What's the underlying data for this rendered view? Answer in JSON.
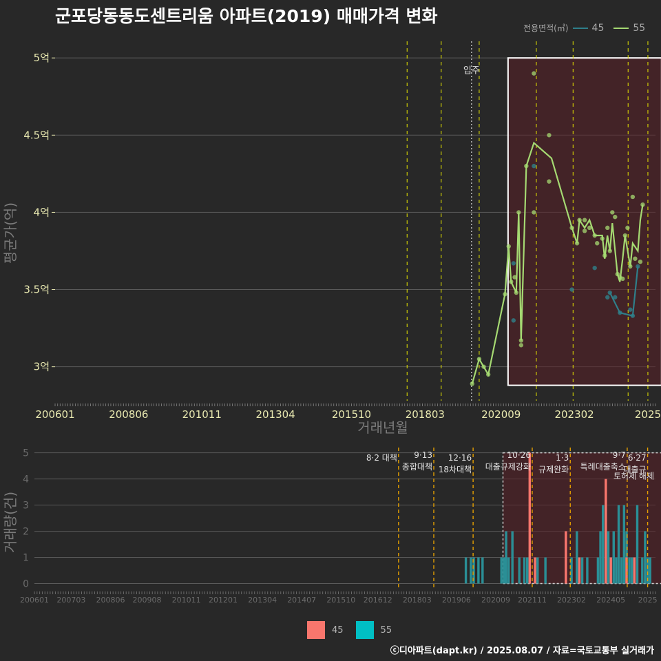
{
  "title": "군포당동동도센트리움 아파트(2019) 매매가격 변화",
  "legend_top": {
    "label": "전용면적(㎡)",
    "items": [
      {
        "name": "45",
        "color": "#2f7f8a"
      },
      {
        "name": "55",
        "color": "#a5d972"
      }
    ]
  },
  "legend_bottom": {
    "items": [
      {
        "name": "45",
        "color": "#f8766d"
      },
      {
        "name": "55",
        "color": "#00bfc4"
      }
    ]
  },
  "footer": "ⓒ디아파트(dapt.kr) / 2025.08.07 / 자료=국토교통부 실거래가",
  "chart_data": [
    {
      "type": "line",
      "title": "군포당동동도센트리움 아파트(2019) 매매가격 변화",
      "xlabel": "거래년월",
      "ylabel": "평균가(억)",
      "xlim": [
        2006.0,
        2025.75
      ],
      "ylim": [
        2.78,
        5.13
      ],
      "x_tick_labels": [
        "200601",
        "200806",
        "201011",
        "201304",
        "201510",
        "201803",
        "202009",
        "202302",
        "2025"
      ],
      "x_tick_values": [
        2006.0,
        2008.42,
        2010.83,
        2013.25,
        2015.75,
        2018.17,
        2020.67,
        2023.08,
        2025.5
      ],
      "y_tick_labels": [
        "3억",
        "3.5억",
        "4억",
        "4.5억",
        "5억"
      ],
      "y_tick_values": [
        3.0,
        3.5,
        4.0,
        4.5,
        5.0
      ],
      "event_lines": [
        2017.58,
        2018.7,
        2019.95,
        2021.83,
        2023.04,
        2024.85,
        2025.5
      ],
      "move_in": {
        "x": 2019.7,
        "label": "입주"
      },
      "highlight_range": [
        2020.9,
        2025.95
      ],
      "series": [
        {
          "name": "55",
          "points": [
            [
              2019.72,
              2.89
            ],
            [
              2019.95,
              3.05
            ],
            [
              2020.1,
              3.0
            ],
            [
              2020.25,
              2.95
            ],
            [
              2020.8,
              3.47
            ],
            [
              2020.92,
              3.78
            ],
            [
              2021.0,
              3.55
            ],
            [
              2021.17,
              3.48
            ],
            [
              2021.25,
              4.0
            ],
            [
              2021.33,
              3.17
            ],
            [
              2021.5,
              4.3
            ],
            [
              2021.75,
              4.45
            ],
            [
              2022.33,
              4.35
            ],
            [
              2023.0,
              3.9
            ],
            [
              2023.17,
              3.8
            ],
            [
              2023.25,
              3.95
            ],
            [
              2023.42,
              3.9
            ],
            [
              2023.58,
              3.95
            ],
            [
              2023.75,
              3.85
            ],
            [
              2024.0,
              3.85
            ],
            [
              2024.08,
              3.7
            ],
            [
              2024.17,
              3.85
            ],
            [
              2024.25,
              3.75
            ],
            [
              2024.33,
              3.93
            ],
            [
              2024.5,
              3.6
            ],
            [
              2024.58,
              3.55
            ],
            [
              2024.67,
              3.7
            ],
            [
              2024.75,
              3.85
            ],
            [
              2024.92,
              3.65
            ],
            [
              2025.0,
              3.8
            ],
            [
              2025.17,
              3.75
            ],
            [
              2025.25,
              3.95
            ],
            [
              2025.33,
              4.05
            ]
          ]
        },
        {
          "name": "45",
          "points": [
            [
              2024.25,
              3.48
            ],
            [
              2024.58,
              3.35
            ],
            [
              2025.0,
              3.33
            ],
            [
              2025.17,
              3.65
            ]
          ]
        }
      ],
      "scatter_55": [
        [
          2019.72,
          2.89
        ],
        [
          2019.95,
          3.05
        ],
        [
          2020.1,
          3.0
        ],
        [
          2020.25,
          2.95
        ],
        [
          2020.8,
          3.47
        ],
        [
          2020.92,
          3.78
        ],
        [
          2021.0,
          3.55
        ],
        [
          2021.12,
          3.58
        ],
        [
          2021.17,
          3.48
        ],
        [
          2021.25,
          4.0
        ],
        [
          2021.33,
          3.17
        ],
        [
          2021.33,
          3.14
        ],
        [
          2021.5,
          4.3
        ],
        [
          2021.75,
          4.9
        ],
        [
          2021.75,
          4.0
        ],
        [
          2022.25,
          4.5
        ],
        [
          2022.25,
          4.2
        ],
        [
          2023.0,
          3.9
        ],
        [
          2023.17,
          3.8
        ],
        [
          2023.25,
          3.95
        ],
        [
          2023.42,
          3.95
        ],
        [
          2023.42,
          3.88
        ],
        [
          2023.58,
          3.9
        ],
        [
          2023.75,
          3.85
        ],
        [
          2023.83,
          3.8
        ],
        [
          2024.0,
          3.83
        ],
        [
          2024.08,
          3.72
        ],
        [
          2024.17,
          3.9
        ],
        [
          2024.25,
          3.75
        ],
        [
          2024.33,
          4.0
        ],
        [
          2024.42,
          3.97
        ],
        [
          2024.5,
          3.6
        ],
        [
          2024.58,
          3.58
        ],
        [
          2024.67,
          3.57
        ],
        [
          2024.75,
          3.85
        ],
        [
          2024.83,
          3.9
        ],
        [
          2024.92,
          3.65
        ],
        [
          2025.0,
          4.1
        ],
        [
          2025.08,
          3.7
        ],
        [
          2025.25,
          3.68
        ],
        [
          2025.33,
          4.05
        ]
      ],
      "scatter_45": [
        [
          2021.75,
          4.3
        ],
        [
          2021.08,
          3.67
        ],
        [
          2021.08,
          3.3
        ],
        [
          2023.0,
          3.5
        ],
        [
          2023.75,
          3.64
        ],
        [
          2024.17,
          3.45
        ],
        [
          2024.25,
          3.48
        ],
        [
          2024.42,
          3.45
        ],
        [
          2024.58,
          3.35
        ],
        [
          2024.92,
          3.37
        ],
        [
          2025.0,
          3.33
        ],
        [
          2025.17,
          3.65
        ]
      ]
    },
    {
      "type": "bar",
      "ylabel": "거래량(건)",
      "xlim": [
        2006.0,
        2025.75
      ],
      "ylim": [
        -0.25,
        5.2
      ],
      "y_tick_values": [
        0,
        1,
        2,
        3,
        4,
        5
      ],
      "y_tick_labels": [
        "0",
        "1",
        "2",
        "3",
        "4",
        "5"
      ],
      "x_tick_labels": [
        "200601",
        "200703",
        "200806",
        "200908",
        "201011",
        "201201",
        "201304",
        "201407",
        "201510",
        "201612",
        "201803",
        "201906",
        "202009",
        "202111",
        "202302",
        "202405",
        "2025"
      ],
      "x_tick_values": [
        2006.0,
        2007.17,
        2008.42,
        2009.58,
        2010.83,
        2012.0,
        2013.25,
        2014.5,
        2015.75,
        2016.92,
        2018.17,
        2019.42,
        2020.67,
        2021.83,
        2023.08,
        2024.33,
        2025.5
      ],
      "events": [
        {
          "x": 2017.58,
          "lines": [
            "8·2 대책"
          ]
        },
        {
          "x": 2018.7,
          "lines": [
            "9·13",
            "종합대책"
          ]
        },
        {
          "x": 2019.95,
          "lines": [
            "12·16",
            "18차대책"
          ]
        },
        {
          "x": 2021.83,
          "lines": [
            "10·26",
            "대출규제강화"
          ]
        },
        {
          "x": 2023.04,
          "lines": [
            "1·3",
            "규제완화"
          ]
        },
        {
          "x": 2024.85,
          "lines": [
            "9·7",
            "특례대출축소"
          ]
        },
        {
          "x": 2025.5,
          "lines": [
            "6·27",
            "대출규"
          ]
        }
      ],
      "extra_annotations": [
        "토허제 해제"
      ],
      "highlight_range": [
        2020.9,
        2025.95
      ],
      "series": [
        {
          "name": "55",
          "bars": [
            [
              2019.72,
              1
            ],
            [
              2019.88,
              1
            ],
            [
              2019.97,
              1
            ],
            [
              2020.12,
              1
            ],
            [
              2020.25,
              1
            ],
            [
              2020.85,
              1
            ],
            [
              2020.93,
              1
            ],
            [
              2021.0,
              2
            ],
            [
              2021.08,
              1
            ],
            [
              2021.2,
              2
            ],
            [
              2021.42,
              1
            ],
            [
              2021.58,
              1
            ],
            [
              2021.67,
              1
            ],
            [
              2021.75,
              1
            ],
            [
              2022.0,
              1
            ],
            [
              2022.25,
              1
            ],
            [
              2023.08,
              1
            ],
            [
              2023.25,
              2
            ],
            [
              2023.42,
              1
            ],
            [
              2023.58,
              1
            ],
            [
              2023.92,
              1
            ],
            [
              2024.0,
              2
            ],
            [
              2024.08,
              3
            ],
            [
              2024.17,
              3
            ],
            [
              2024.25,
              2
            ],
            [
              2024.33,
              1
            ],
            [
              2024.42,
              2
            ],
            [
              2024.5,
              1
            ],
            [
              2024.58,
              3
            ],
            [
              2024.67,
              1
            ],
            [
              2024.75,
              3
            ],
            [
              2024.83,
              2
            ],
            [
              2024.92,
              1
            ],
            [
              2025.0,
              1
            ],
            [
              2025.17,
              3
            ],
            [
              2025.33,
              1
            ],
            [
              2025.42,
              2
            ],
            [
              2025.5,
              1
            ],
            [
              2025.58,
              1
            ]
          ]
        },
        {
          "name": "45",
          "bars": [
            [
              2021.75,
              5
            ],
            [
              2021.92,
              1
            ],
            [
              2022.9,
              2
            ],
            [
              2023.33,
              1
            ],
            [
              2024.17,
              4
            ],
            [
              2024.33,
              1
            ],
            [
              2024.83,
              1
            ],
            [
              2025.08,
              1
            ]
          ]
        }
      ]
    }
  ]
}
